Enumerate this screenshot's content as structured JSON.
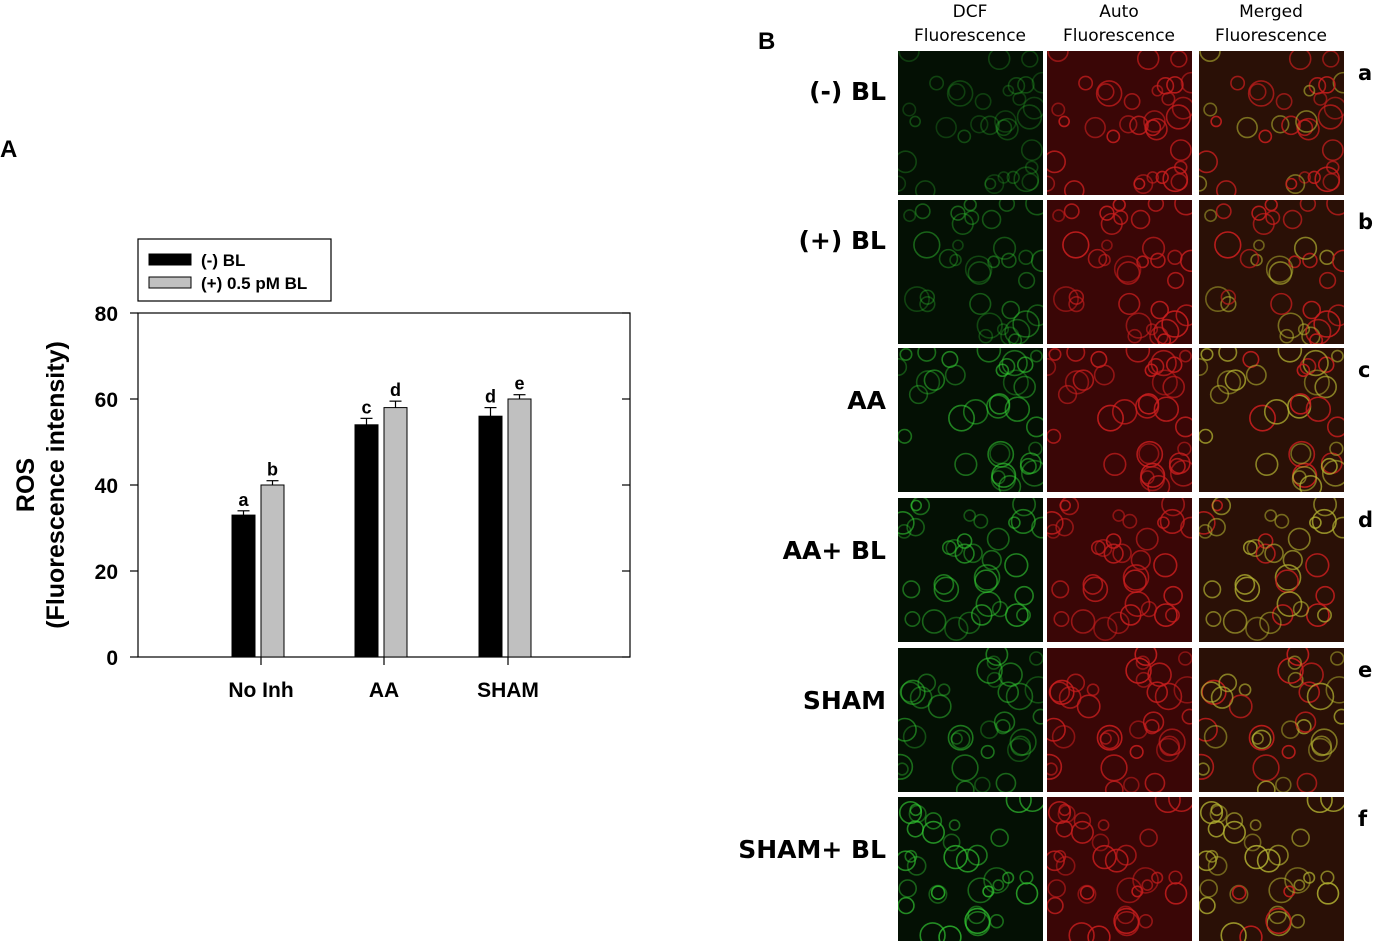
{
  "panel_a": {
    "label": "A"
  },
  "panel_b": {
    "label": "B",
    "columns": [
      {
        "line1": "DCF",
        "line2": "Fluorescence",
        "channel": "green"
      },
      {
        "line1": "Auto",
        "line2": "Fluorescence",
        "channel": "red"
      },
      {
        "line1": "Merged",
        "line2": "Fluorescence",
        "channel": "merged"
      }
    ],
    "rows": [
      {
        "label": "(-) BL",
        "letter": "a",
        "green_level": 0.25
      },
      {
        "label": "(+) BL",
        "letter": "b",
        "green_level": 0.45
      },
      {
        "label": "AA",
        "letter": "c",
        "green_level": 0.7
      },
      {
        "label": "AA+ BL",
        "letter": "d",
        "green_level": 0.75
      },
      {
        "label": "SHAM",
        "letter": "e",
        "green_level": 0.6
      },
      {
        "label": "SHAM+ BL",
        "letter": "f",
        "green_level": 0.9
      }
    ],
    "colors": {
      "green": "#32c832",
      "red": "#c81e1e",
      "merged": "#b4b432",
      "background": "#0a0a0a"
    }
  },
  "chart_data": {
    "type": "bar",
    "categories": [
      "No Inh",
      "AA",
      "SHAM"
    ],
    "series": [
      {
        "name": "(-) BL",
        "color": "#000000",
        "values": [
          33,
          54,
          56
        ],
        "errors": [
          1,
          1.5,
          2
        ],
        "labels": [
          "a",
          "c",
          "d"
        ]
      },
      {
        "name": "(+) 0.5 pM BL",
        "color": "#c0c0c0",
        "values": [
          40,
          58,
          60
        ],
        "errors": [
          1,
          1.5,
          1
        ],
        "labels": [
          "b",
          "d",
          "e"
        ]
      }
    ],
    "ylabel_line1": "ROS",
    "ylabel_line2": "(Fluorescence intensity)",
    "xlabel": "",
    "ylim": [
      0,
      80
    ],
    "yticks": [
      0,
      20,
      40,
      60,
      80
    ],
    "legend_position": "top-left, outside above plot",
    "grid": false
  }
}
